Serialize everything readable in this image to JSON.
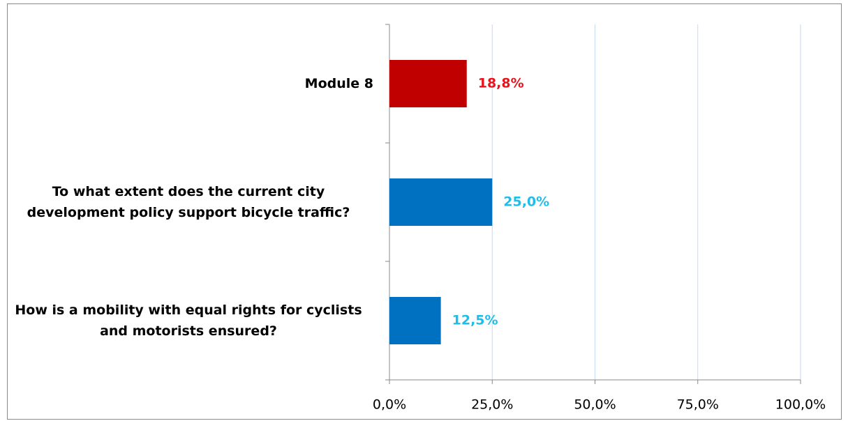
{
  "chart_data": {
    "type": "bar",
    "orientation": "horizontal",
    "categories": [
      "Module 8",
      "To what extent does the current city development policy support bicycle traffic?",
      "How is a mobility with equal rights for cyclists and motorists ensured?"
    ],
    "values": [
      18.8,
      25.0,
      12.5
    ],
    "value_labels": [
      "18,8%",
      "25,0%",
      "12,5%"
    ],
    "colors": [
      "#c00000",
      "#0070c0",
      "#0070c0"
    ],
    "label_colors": [
      "#e8141c",
      "#1fbde9",
      "#1fbde9"
    ],
    "xlim": [
      0,
      100
    ],
    "xticks": [
      {
        "value": 0,
        "label": "0,0%"
      },
      {
        "value": 25,
        "label": "25,0%"
      },
      {
        "value": 50,
        "label": "50,0%"
      },
      {
        "value": 75,
        "label": "75,0%"
      },
      {
        "value": 100,
        "label": "100,0%"
      }
    ],
    "grid": true
  }
}
